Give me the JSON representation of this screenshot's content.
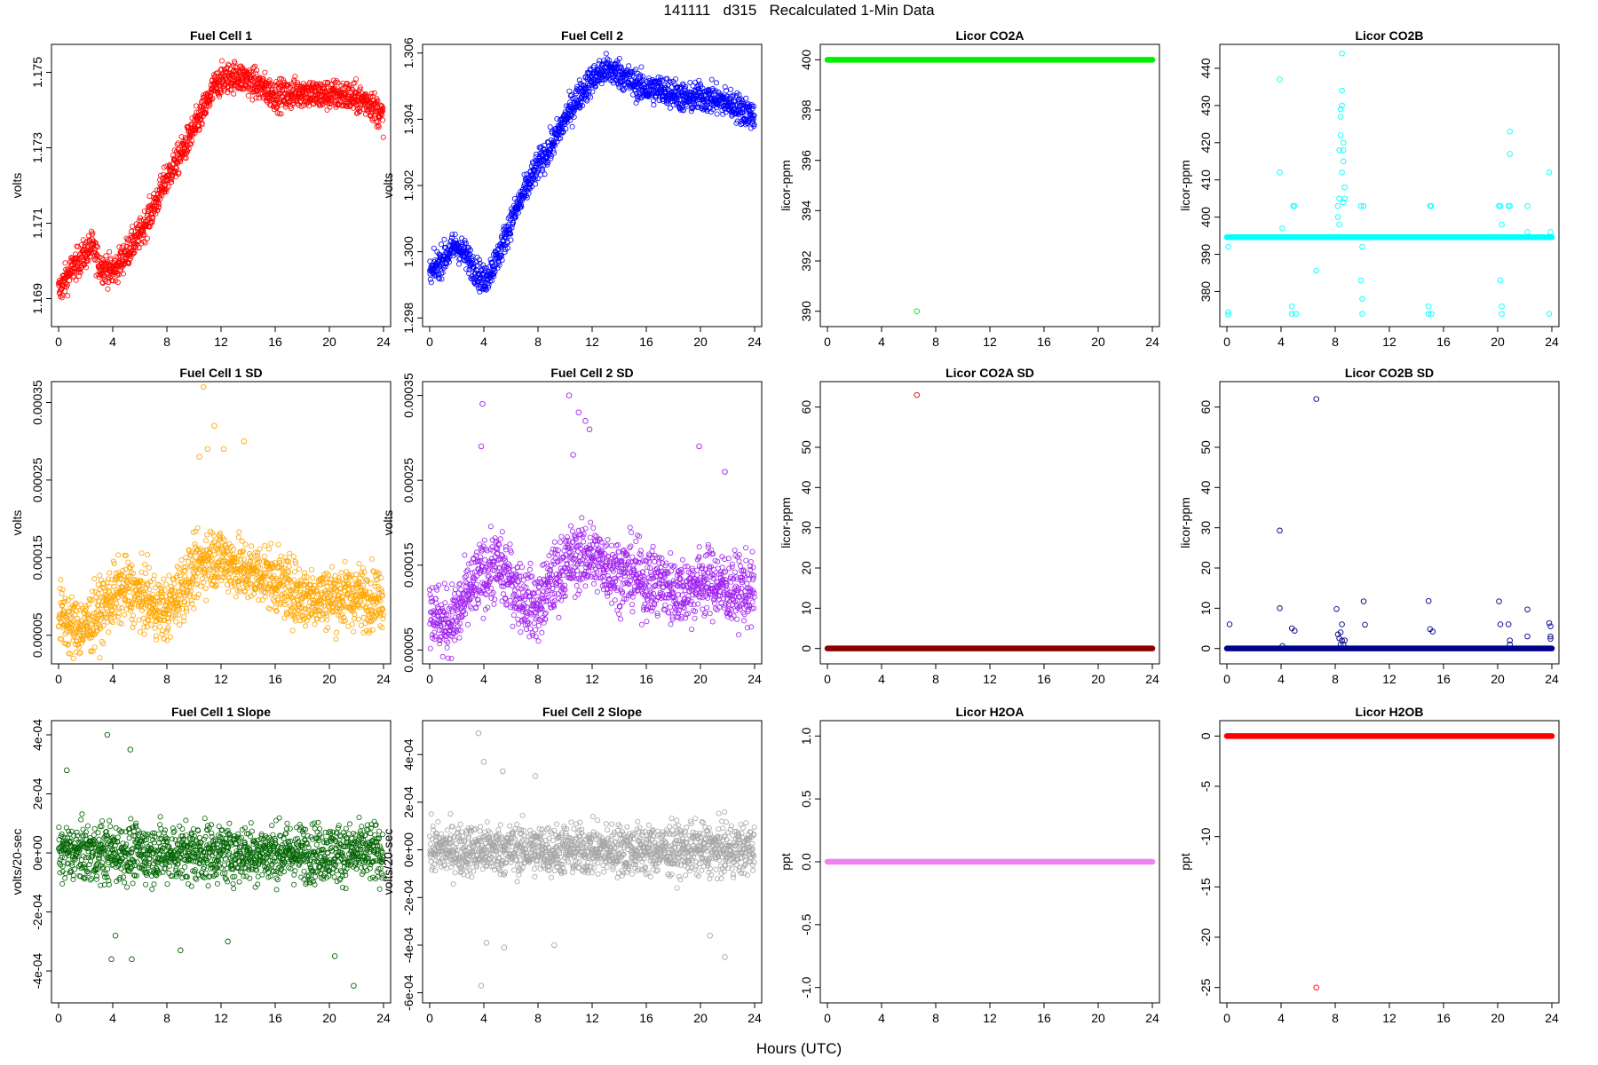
{
  "title": "141111   d315   Recalculated 1-Min Data",
  "xlabel": "Hours (UTC)",
  "chart_data": [
    {
      "type": "scatter",
      "title": "Fuel Cell 1",
      "ylabel": "volts",
      "color": "#ff0000",
      "xlim": [
        0,
        24
      ],
      "ylim": [
        1.1684,
        1.1756
      ],
      "yticks": [
        1.169,
        1.171,
        1.173,
        1.175
      ],
      "yticklabels": [
        "1.169",
        "1.171",
        "1.173",
        "1.175"
      ],
      "xticks": [
        0,
        4,
        8,
        12,
        16,
        20,
        24
      ],
      "xticklabels": [
        "0",
        "4",
        "8",
        "12",
        "16",
        "20",
        "24"
      ],
      "series": [
        {
          "kind": "trend",
          "x": [
            0,
            1,
            2,
            2.5,
            3,
            4,
            5,
            6,
            7,
            8,
            9,
            10,
            11,
            11.5,
            12,
            13,
            14,
            15,
            16,
            17,
            18,
            19,
            20,
            21,
            22,
            23,
            24
          ],
          "y": [
            1.1692,
            1.1698,
            1.1702,
            1.1704,
            1.1699,
            1.1697,
            1.1702,
            1.1707,
            1.1714,
            1.1722,
            1.1728,
            1.1735,
            1.1742,
            1.1746,
            1.1748,
            1.1749,
            1.1748,
            1.1746,
            1.1744,
            1.1744,
            1.1745,
            1.1744,
            1.1744,
            1.1744,
            1.1743,
            1.1742,
            1.1738
          ],
          "noise": 0.00045
        }
      ]
    },
    {
      "type": "scatter",
      "title": "Fuel Cell 2",
      "ylabel": "volts",
      "color": "#0000ff",
      "xlim": [
        0,
        24
      ],
      "ylim": [
        1.2979,
        1.3061
      ],
      "yticks": [
        1.298,
        1.3,
        1.302,
        1.304,
        1.306
      ],
      "yticklabels": [
        "1.298",
        "1.300",
        "1.302",
        "1.304",
        "1.306"
      ],
      "xticks": [
        0,
        4,
        8,
        12,
        16,
        20,
        24
      ],
      "xticklabels": [
        "0",
        "4",
        "8",
        "12",
        "16",
        "20",
        "24"
      ],
      "series": [
        {
          "kind": "trend",
          "x": [
            0,
            1,
            2,
            3,
            4,
            5,
            6,
            7,
            8,
            9,
            10,
            11,
            12,
            13,
            14,
            15,
            16,
            17,
            18,
            19,
            20,
            21,
            22,
            23,
            24
          ],
          "y": [
            1.2993,
            1.2998,
            1.3002,
            1.2997,
            1.2991,
            1.2998,
            1.3009,
            1.3018,
            1.3026,
            1.3032,
            1.304,
            1.3047,
            1.3052,
            1.3055,
            1.3054,
            1.3051,
            1.3049,
            1.3049,
            1.3048,
            1.3046,
            1.3047,
            1.3046,
            1.3045,
            1.3043,
            1.3041
          ],
          "noise": 0.0005
        }
      ]
    },
    {
      "type": "scatter",
      "title": "Licor CO2A",
      "ylabel": "licor-ppm",
      "color": "#00ee00",
      "xlim": [
        0,
        24
      ],
      "ylim": [
        389.6,
        400.4
      ],
      "yticks": [
        390,
        392,
        394,
        396,
        398,
        400
      ],
      "yticklabels": [
        "390",
        "392",
        "394",
        "396",
        "398",
        "400"
      ],
      "xticks": [
        0,
        4,
        8,
        12,
        16,
        20,
        24
      ],
      "xticklabels": [
        "0",
        "4",
        "8",
        "12",
        "16",
        "20",
        "24"
      ],
      "series": [
        {
          "kind": "line",
          "y": 400
        },
        {
          "kind": "points",
          "x": [
            6.6
          ],
          "y": [
            390
          ]
        }
      ]
    },
    {
      "type": "scatter",
      "title": "Licor CO2B",
      "ylabel": "licor-ppm",
      "color": "#00ffff",
      "xlim": [
        0,
        24
      ],
      "ylim": [
        372,
        445
      ],
      "yticks": [
        380,
        390,
        400,
        410,
        420,
        430,
        440
      ],
      "yticklabels": [
        "380",
        "390",
        "400",
        "410",
        "420",
        "430",
        "440"
      ],
      "xticks": [
        0,
        4,
        8,
        12,
        16,
        20,
        24
      ],
      "xticklabels": [
        "0",
        "4",
        "8",
        "12",
        "16",
        "20",
        "24"
      ],
      "series": [
        {
          "kind": "line",
          "y": 394.6
        },
        {
          "kind": "points",
          "x": [
            0.1,
            0.1,
            0.1,
            3.9,
            3.9,
            4.1,
            4.8,
            4.8,
            4.9,
            5.0,
            5.1,
            6.6,
            8.2,
            8.3,
            8.3,
            8.4,
            8.4,
            8.4,
            8.5,
            8.5,
            8.5,
            8.5,
            8.6,
            8.6,
            8.6,
            8.6,
            8.7,
            8.7,
            8.2,
            8.3,
            9.9,
            9.9,
            10.0,
            10.0,
            10.0,
            10.1,
            14.9,
            14.9,
            15.0,
            15.1,
            15.1,
            20.1,
            20.2,
            20.2,
            20.3,
            20.3,
            20.3,
            20.8,
            20.9,
            20.9,
            20.9,
            22.2,
            22.2,
            23.8,
            23.8,
            23.9
          ],
          "y": [
            373.8,
            374.5,
            392,
            437,
            412,
            397,
            376,
            374,
            403,
            403,
            374,
            385.6,
            400,
            405,
            418,
            422,
            427,
            429,
            430,
            434,
            444,
            412,
            418,
            415,
            404,
            420,
            408,
            405,
            403,
            398,
            403,
            383,
            374,
            392,
            378,
            403,
            374,
            376,
            403,
            403,
            374,
            403,
            403,
            383,
            374,
            376,
            398,
            403,
            423,
            417,
            403,
            403,
            396,
            374,
            412,
            396
          ]
        }
      ]
    },
    {
      "type": "scatter",
      "title": "Fuel Cell 1 SD",
      "ylabel": "volts",
      "color": "#ffa500",
      "xlim": [
        0,
        24
      ],
      "ylim": [
        2e-05,
        0.00037
      ],
      "yticks": [
        5e-05,
        0.00015,
        0.00025,
        0.00035
      ],
      "yticklabels": [
        "0.00005",
        "0.00015",
        "0.00025",
        "0.00035"
      ],
      "xticks": [
        0,
        4,
        8,
        12,
        16,
        20,
        24
      ],
      "xticklabels": [
        "0",
        "4",
        "8",
        "12",
        "16",
        "20",
        "24"
      ],
      "series": [
        {
          "kind": "trend",
          "x": [
            0,
            1,
            2,
            3,
            4,
            5,
            6,
            7,
            8,
            9,
            10,
            11,
            12,
            13,
            14,
            15,
            16,
            17,
            18,
            19,
            20,
            21,
            22,
            23,
            24
          ],
          "y": [
            8e-05,
            6e-05,
            6e-05,
            8e-05,
            0.0001,
            0.00011,
            0.0001,
            9e-05,
            8e-05,
            0.00011,
            0.00013,
            0.00015,
            0.00015,
            0.00014,
            0.00013,
            0.00013,
            0.00012,
            0.00011,
            0.0001,
            0.0001,
            0.0001,
            0.0001,
            0.0001,
            0.0001,
            0.0001
          ],
          "noise": 4.5e-05
        },
        {
          "kind": "points",
          "x": [
            10.7,
            11.5,
            13.7,
            12.2,
            10.4,
            11.0
          ],
          "y": [
            0.00037,
            0.00032,
            0.0003,
            0.00029,
            0.00028,
            0.00029
          ]
        }
      ]
    },
    {
      "type": "scatter",
      "title": "Fuel Cell 2 SD",
      "ylabel": "volts",
      "color": "#a020f0",
      "xlim": [
        0,
        24
      ],
      "ylim": [
        4e-05,
        0.00036
      ],
      "yticks": [
        5e-05,
        0.00015,
        0.00025,
        0.00035
      ],
      "yticklabels": [
        "0.00005",
        "0.00015",
        "0.00025",
        "0.00035"
      ],
      "xticks": [
        0,
        4,
        8,
        12,
        16,
        20,
        24
      ],
      "xticklabels": [
        "0",
        "4",
        "8",
        "12",
        "16",
        "20",
        "24"
      ],
      "series": [
        {
          "kind": "trend",
          "x": [
            0,
            1,
            2,
            3,
            4,
            5,
            6,
            7,
            8,
            9,
            10,
            11,
            12,
            13,
            14,
            15,
            16,
            17,
            18,
            19,
            20,
            21,
            22,
            23,
            24
          ],
          "y": [
            0.0001,
            8e-05,
            9e-05,
            0.00012,
            0.00014,
            0.00015,
            0.00013,
            0.00011,
            0.0001,
            0.00013,
            0.00015,
            0.00016,
            0.00016,
            0.00015,
            0.00014,
            0.00014,
            0.00013,
            0.00013,
            0.00012,
            0.00012,
            0.00013,
            0.00013,
            0.00012,
            0.00012,
            0.00012
          ],
          "noise": 4.5e-05
        },
        {
          "kind": "points",
          "x": [
            3.9,
            3.8,
            10.3,
            11.0,
            11.5,
            11.8,
            19.9,
            21.8,
            10.6
          ],
          "y": [
            0.00034,
            0.00029,
            0.00035,
            0.00033,
            0.00032,
            0.00031,
            0.00029,
            0.00026,
            0.00028
          ]
        }
      ]
    },
    {
      "type": "scatter",
      "title": "Licor CO2A SD",
      "ylabel": "licor-ppm",
      "color": "#8b0000",
      "xlim": [
        0,
        24
      ],
      "ylim": [
        -2.5,
        65
      ],
      "yticks": [
        0,
        10,
        20,
        30,
        40,
        50,
        60
      ],
      "yticklabels": [
        "0",
        "10",
        "20",
        "30",
        "40",
        "50",
        "60"
      ],
      "xticks": [
        0,
        4,
        8,
        12,
        16,
        20,
        24
      ],
      "xticklabels": [
        "0",
        "4",
        "8",
        "12",
        "16",
        "20",
        "24"
      ],
      "series": [
        {
          "kind": "line",
          "y": 0
        },
        {
          "kind": "points",
          "x": [
            6.6
          ],
          "y": [
            63
          ],
          "color": "#e00000"
        }
      ]
    },
    {
      "type": "scatter",
      "title": "Licor CO2B SD",
      "ylabel": "licor-ppm",
      "color": "#00008b",
      "xlim": [
        0,
        24
      ],
      "ylim": [
        -2.5,
        65
      ],
      "yticks": [
        0,
        10,
        20,
        30,
        40,
        50,
        60
      ],
      "yticklabels": [
        "0",
        "10",
        "20",
        "30",
        "40",
        "50",
        "60"
      ],
      "xticks": [
        0,
        4,
        8,
        12,
        16,
        20,
        24
      ],
      "xticklabels": [
        "0",
        "4",
        "8",
        "12",
        "16",
        "20",
        "24"
      ],
      "series": [
        {
          "kind": "line",
          "y": 0
        },
        {
          "kind": "points",
          "x": [
            0.2,
            3.9,
            3.9,
            4.1,
            4.8,
            5.0,
            6.6,
            8.1,
            8.2,
            8.3,
            8.4,
            8.5,
            8.6,
            8.7,
            8.4,
            8.5,
            10.1,
            10.2,
            14.9,
            15.0,
            15.2,
            20.1,
            20.2,
            20.8,
            20.9,
            20.9,
            22.2,
            22.2,
            23.8,
            23.9,
            23.9,
            23.9
          ],
          "y": [
            6,
            29.3,
            10,
            0.6,
            5,
            4.4,
            62,
            9.8,
            3.5,
            2.5,
            4,
            6,
            1,
            2,
            1,
            2,
            11.7,
            5.9,
            11.8,
            4.8,
            4.2,
            11.7,
            6,
            6,
            2,
            1,
            9.7,
            3,
            6.3,
            3,
            5.5,
            2.4
          ]
        }
      ]
    },
    {
      "type": "scatter",
      "title": "Fuel Cell 1 Slope",
      "ylabel": "volts/20-sec",
      "color": "#006400",
      "xlim": [
        0,
        24
      ],
      "ylim": [
        -0.00049,
        0.00043
      ],
      "yticks": [
        -0.0004,
        -0.0002,
        0,
        0.0002,
        0.0004
      ],
      "yticklabels": [
        "-4e-04",
        "-2e-04",
        "0e+00",
        "2e-04",
        "4e-04"
      ],
      "xticks": [
        0,
        4,
        8,
        12,
        16,
        20,
        24
      ],
      "xticklabels": [
        "0",
        "4",
        "8",
        "12",
        "16",
        "20",
        "24"
      ],
      "series": [
        {
          "kind": "trend",
          "x": [
            0,
            24
          ],
          "y": [
            0,
            0
          ],
          "noise": 0.00011
        },
        {
          "kind": "points",
          "x": [
            3.6,
            5.3,
            0.6,
            21.8,
            20.4,
            3.9,
            5.4,
            9.0,
            12.5,
            4.2
          ],
          "y": [
            0.0004,
            0.00035,
            0.00028,
            -0.00045,
            -0.00035,
            -0.00036,
            -0.00036,
            -0.00033,
            -0.0003,
            -0.00028
          ]
        }
      ]
    },
    {
      "type": "scatter",
      "title": "Fuel Cell 2 Slope",
      "ylabel": "volts/20-sec",
      "color": "#a6a6a6",
      "xlim": [
        0,
        24
      ],
      "ylim": [
        -0.00062,
        0.00052
      ],
      "yticks": [
        -0.0006,
        -0.0004,
        -0.0002,
        0,
        0.0002,
        0.0004
      ],
      "yticklabels": [
        "-6e-04",
        "-4e-04",
        "-2e-04",
        "0e+00",
        "2e-04",
        "4e-04"
      ],
      "xticks": [
        0,
        4,
        8,
        12,
        16,
        20,
        24
      ],
      "xticklabels": [
        "0",
        "4",
        "8",
        "12",
        "16",
        "20",
        "24"
      ],
      "series": [
        {
          "kind": "trend",
          "x": [
            0,
            24
          ],
          "y": [
            0,
            0
          ],
          "noise": 0.00012
        },
        {
          "kind": "points",
          "x": [
            3.6,
            4.0,
            5.4,
            7.8,
            3.8,
            4.2,
            5.5,
            9.2,
            20.7,
            21.8
          ],
          "y": [
            0.00049,
            0.00037,
            0.00033,
            0.00031,
            -0.00057,
            -0.00039,
            -0.00041,
            -0.0004,
            -0.00036,
            -0.00045
          ]
        }
      ]
    },
    {
      "type": "scatter",
      "title": "Licor H2OA",
      "ylabel": "ppt",
      "color": "#ee82ee",
      "xlim": [
        0,
        24
      ],
      "ylim": [
        -1.08,
        1.08
      ],
      "yticks": [
        -1,
        -0.5,
        0,
        0.5,
        1
      ],
      "yticklabels": [
        "-1.0",
        "-0.5",
        "0.0",
        "0.5",
        "1.0"
      ],
      "xticks": [
        0,
        4,
        8,
        12,
        16,
        20,
        24
      ],
      "xticklabels": [
        "0",
        "4",
        "8",
        "12",
        "16",
        "20",
        "24"
      ],
      "series": [
        {
          "kind": "line",
          "y": 0
        }
      ]
    },
    {
      "type": "scatter",
      "title": "Licor H2OB",
      "ylabel": "ppt",
      "color": "#ff0000",
      "xlim": [
        0,
        24
      ],
      "ylim": [
        -26,
        1
      ],
      "yticks": [
        -25,
        -20,
        -15,
        -10,
        -5,
        0
      ],
      "yticklabels": [
        "-25",
        "-20",
        "-15",
        "-10",
        "-5",
        "0"
      ],
      "xticks": [
        0,
        4,
        8,
        12,
        16,
        20,
        24
      ],
      "xticklabels": [
        "0",
        "4",
        "8",
        "12",
        "16",
        "20",
        "24"
      ],
      "series": [
        {
          "kind": "line",
          "y": 0
        },
        {
          "kind": "points",
          "x": [
            6.6
          ],
          "y": [
            -25
          ]
        }
      ]
    }
  ]
}
